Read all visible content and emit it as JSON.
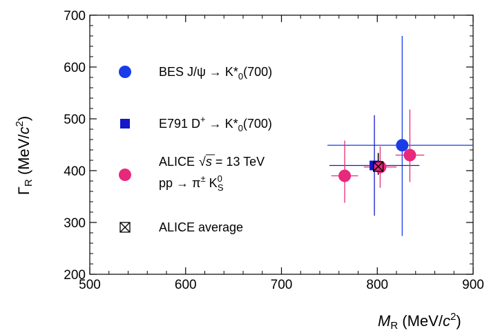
{
  "chart_data": {
    "type": "scatter",
    "xlabel": "M_R (MeV/c^2)",
    "ylabel": "Γ_R (MeV/c^2)",
    "xlim": [
      500,
      900
    ],
    "ylim": [
      200,
      700
    ],
    "x_ticks": [
      "500",
      "600",
      "700",
      "800",
      "900"
    ],
    "y_ticks": [
      "200",
      "300",
      "400",
      "500",
      "600",
      "700"
    ],
    "grid": false,
    "legend_position": "left",
    "series": [
      {
        "name": "BES J/ψ → K*0(700)",
        "color": "#1a3ce8",
        "marker": "circle",
        "points": [
          {
            "x": 826,
            "y": 449,
            "xerr_low": 78,
            "xerr_high": 74,
            "yerr_low": 175,
            "yerr_high": 211
          }
        ]
      },
      {
        "name": "E791 D+ → K*0(700)",
        "color": "#1418c8",
        "marker": "square",
        "points": [
          {
            "x": 797,
            "y": 410,
            "xerr_low": 47,
            "xerr_high": 47,
            "yerr_low": 97,
            "yerr_high": 97
          }
        ]
      },
      {
        "name": "ALICE √s = 13 TeV pp → π± K0S",
        "color": "#e8287a",
        "marker": "circle",
        "points": [
          {
            "x": 766,
            "y": 390,
            "xerr_low": 14,
            "xerr_high": 14,
            "yerr_low": 52,
            "yerr_high": 68
          },
          {
            "x": 803,
            "y": 407,
            "xerr_low": 17,
            "xerr_high": 17,
            "yerr_low": 40,
            "yerr_high": 40
          },
          {
            "x": 834,
            "y": 430,
            "xerr_low": 15,
            "xerr_high": 15,
            "yerr_low": 52,
            "yerr_high": 88
          }
        ]
      },
      {
        "name": "ALICE average",
        "color": "#000000",
        "marker": "crossed-square",
        "points": [
          {
            "x": 801,
            "y": 408,
            "xerr_low": 4,
            "xerr_high": 4,
            "yerr_low": 16,
            "yerr_high": 26
          }
        ]
      }
    ]
  },
  "legend": {
    "bes_label": "BES J/ψ → K*",
    "bes_sub": "0",
    "bes_tail": "(700)",
    "e791_label": "E791 D",
    "e791_sup": "+",
    "e791_arrow": " → K*",
    "e791_sub": "0",
    "e791_tail": "(700)",
    "alice_line1": "ALICE",
    "alice_sqrt": "√",
    "alice_s": "s",
    "alice_energy": " = 13 TeV",
    "alice_line2": "pp → π",
    "alice_pm": "±",
    "alice_k": " K",
    "alice_k_sup": "0",
    "alice_k_sub": "S",
    "average_label": "ALICE average"
  },
  "axes": {
    "x_title_main": "M",
    "x_title_sub": "R",
    "x_title_unit": " (MeV/",
    "x_title_c": "c",
    "x_title_exp": "2",
    "x_title_close": ")",
    "y_title_main": "Γ",
    "y_title_sub": "R",
    "y_title_unit": " (MeV/",
    "y_title_c": "c",
    "y_title_exp": "2",
    "y_title_close": ")"
  }
}
